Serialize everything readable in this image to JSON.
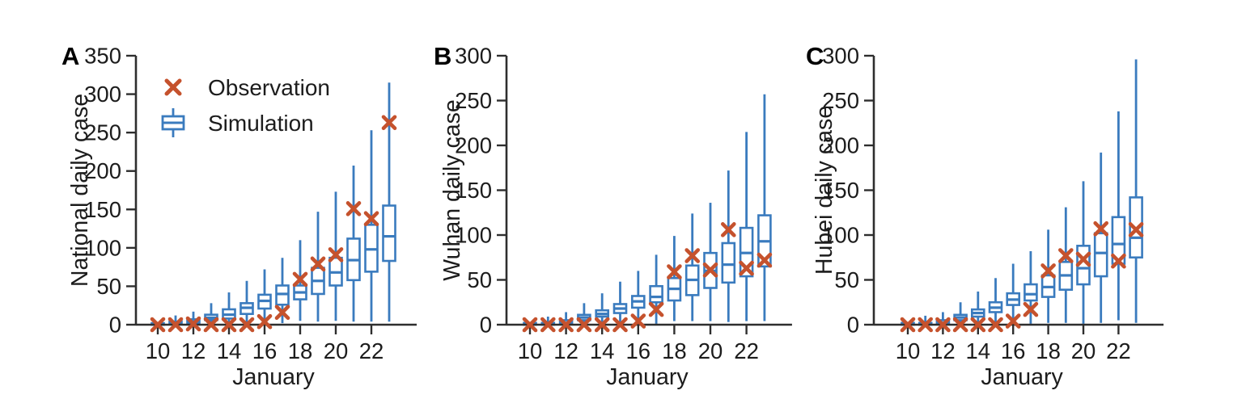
{
  "figure": {
    "xlabel": "January",
    "legend": {
      "observation_label": "Observation",
      "simulation_label": "Simulation"
    },
    "colors": {
      "simulation_blue": "#3a7bbe",
      "observation_orange": "#c5522d",
      "axis": "#2e2e2e",
      "text": "#1c1c1c"
    }
  },
  "chart_data": [
    {
      "type": "boxplot",
      "panel_label": "A",
      "ylabel": "National daily case",
      "xlabel": "January",
      "ylim": [
        0,
        350
      ],
      "yticks": [
        0,
        50,
        100,
        150,
        200,
        250,
        300,
        350
      ],
      "xticks": [
        10,
        12,
        14,
        16,
        18,
        20,
        22
      ],
      "days": [
        10,
        11,
        12,
        13,
        14,
        15,
        16,
        17,
        18,
        19,
        20,
        21,
        22,
        23
      ],
      "observation": [
        0,
        0,
        1,
        0,
        0,
        0,
        4,
        16,
        59,
        79,
        91,
        151,
        138,
        263
      ],
      "boxes": [
        {
          "day": 10,
          "low": 0,
          "q1": 0,
          "median": 1,
          "q3": 2,
          "high": 3
        },
        {
          "day": 11,
          "low": 0,
          "q1": 1,
          "median": 2,
          "q3": 4,
          "high": 12
        },
        {
          "day": 12,
          "low": 0,
          "q1": 2,
          "median": 4,
          "q3": 7,
          "high": 17
        },
        {
          "day": 13,
          "low": 1,
          "q1": 6,
          "median": 9,
          "q3": 13,
          "high": 28
        },
        {
          "day": 14,
          "low": 1,
          "q1": 8,
          "median": 13,
          "q3": 20,
          "high": 42
        },
        {
          "day": 15,
          "low": 1,
          "q1": 14,
          "median": 22,
          "q3": 28,
          "high": 57
        },
        {
          "day": 16,
          "low": 2,
          "q1": 21,
          "median": 31,
          "q3": 39,
          "high": 72
        },
        {
          "day": 17,
          "low": 2,
          "q1": 26,
          "median": 40,
          "q3": 51,
          "high": 87
        },
        {
          "day": 18,
          "low": 5,
          "q1": 33,
          "median": 42,
          "q3": 51,
          "high": 110
        },
        {
          "day": 19,
          "low": 4,
          "q1": 40,
          "median": 57,
          "q3": 74,
          "high": 147
        },
        {
          "day": 20,
          "low": 5,
          "q1": 51,
          "median": 68,
          "q3": 87,
          "high": 173
        },
        {
          "day": 21,
          "low": 4,
          "q1": 58,
          "median": 84,
          "q3": 112,
          "high": 207
        },
        {
          "day": 22,
          "low": 4,
          "q1": 69,
          "median": 98,
          "q3": 130,
          "high": 253
        },
        {
          "day": 23,
          "low": 4,
          "q1": 83,
          "median": 115,
          "q3": 155,
          "high": 315
        }
      ],
      "show_legend": true
    },
    {
      "type": "boxplot",
      "panel_label": "B",
      "ylabel": "Wuhan daily case",
      "xlabel": "January",
      "ylim": [
        0,
        300
      ],
      "yticks": [
        0,
        50,
        100,
        150,
        200,
        250,
        300
      ],
      "xticks": [
        10,
        12,
        14,
        16,
        18,
        20,
        22
      ],
      "days": [
        10,
        11,
        12,
        13,
        14,
        15,
        16,
        17,
        18,
        19,
        20,
        21,
        22,
        23
      ],
      "observation": [
        0,
        0,
        0,
        0,
        0,
        0,
        4,
        17,
        59,
        77,
        61,
        106,
        63,
        72
      ],
      "boxes": [
        {
          "day": 10,
          "low": 0,
          "q1": 0,
          "median": 1,
          "q3": 2,
          "high": 3
        },
        {
          "day": 11,
          "low": 0,
          "q1": 0,
          "median": 1,
          "q3": 2,
          "high": 9
        },
        {
          "day": 12,
          "low": 0,
          "q1": 1,
          "median": 2,
          "q3": 5,
          "high": 14
        },
        {
          "day": 13,
          "low": 0,
          "q1": 5,
          "median": 8,
          "q3": 11,
          "high": 24
        },
        {
          "day": 14,
          "low": 0,
          "q1": 9,
          "median": 12,
          "q3": 16,
          "high": 35
        },
        {
          "day": 15,
          "low": 0,
          "q1": 13,
          "median": 18,
          "q3": 23,
          "high": 48
        },
        {
          "day": 16,
          "low": 1,
          "q1": 19,
          "median": 26,
          "q3": 32,
          "high": 60
        },
        {
          "day": 17,
          "low": 1,
          "q1": 25,
          "median": 31,
          "q3": 43,
          "high": 78
        },
        {
          "day": 18,
          "low": 4,
          "q1": 27,
          "median": 40,
          "q3": 52,
          "high": 99
        },
        {
          "day": 19,
          "low": 4,
          "q1": 33,
          "median": 50,
          "q3": 66,
          "high": 124
        },
        {
          "day": 20,
          "low": 4,
          "q1": 41,
          "median": 60,
          "q3": 80,
          "high": 136
        },
        {
          "day": 21,
          "low": 3,
          "q1": 47,
          "median": 67,
          "q3": 91,
          "high": 172
        },
        {
          "day": 22,
          "low": 4,
          "q1": 54,
          "median": 80,
          "q3": 108,
          "high": 215
        },
        {
          "day": 23,
          "low": 4,
          "q1": 65,
          "median": 93,
          "q3": 122,
          "high": 257
        }
      ],
      "show_legend": false
    },
    {
      "type": "boxplot",
      "panel_label": "C",
      "ylabel": "Hubei daily case",
      "xlabel": "January",
      "ylim": [
        0,
        300
      ],
      "yticks": [
        0,
        50,
        100,
        150,
        200,
        250,
        300
      ],
      "xticks": [
        10,
        12,
        14,
        16,
        18,
        20,
        22
      ],
      "days": [
        10,
        11,
        12,
        13,
        14,
        15,
        16,
        17,
        18,
        19,
        20,
        21,
        22,
        23
      ],
      "observation": [
        0,
        0,
        0,
        0,
        0,
        0,
        4,
        17,
        60,
        77,
        73,
        107,
        71,
        106
      ],
      "boxes": [
        {
          "day": 10,
          "low": 0,
          "q1": 0,
          "median": 1,
          "q3": 2,
          "high": 3
        },
        {
          "day": 11,
          "low": 0,
          "q1": 0,
          "median": 1,
          "q3": 2,
          "high": 10
        },
        {
          "day": 12,
          "low": 0,
          "q1": 1,
          "median": 2,
          "q3": 5,
          "high": 14
        },
        {
          "day": 13,
          "low": 0,
          "q1": 5,
          "median": 8,
          "q3": 11,
          "high": 25
        },
        {
          "day": 14,
          "low": 0,
          "q1": 9,
          "median": 13,
          "q3": 17,
          "high": 37
        },
        {
          "day": 15,
          "low": 0,
          "q1": 14,
          "median": 19,
          "q3": 25,
          "high": 52
        },
        {
          "day": 16,
          "low": 1,
          "q1": 22,
          "median": 28,
          "q3": 35,
          "high": 68
        },
        {
          "day": 17,
          "low": 1,
          "q1": 27,
          "median": 34,
          "q3": 45,
          "high": 82
        },
        {
          "day": 18,
          "low": 2,
          "q1": 31,
          "median": 42,
          "q3": 55,
          "high": 106
        },
        {
          "day": 19,
          "low": 2,
          "q1": 39,
          "median": 55,
          "q3": 70,
          "high": 131
        },
        {
          "day": 20,
          "low": 1,
          "q1": 45,
          "median": 63,
          "q3": 88,
          "high": 160
        },
        {
          "day": 21,
          "low": 2,
          "q1": 54,
          "median": 80,
          "q3": 102,
          "high": 192
        },
        {
          "day": 22,
          "low": 5,
          "q1": 68,
          "median": 90,
          "q3": 120,
          "high": 238
        },
        {
          "day": 23,
          "low": 2,
          "q1": 75,
          "median": 97,
          "q3": 142,
          "high": 296
        }
      ],
      "show_legend": false
    }
  ]
}
